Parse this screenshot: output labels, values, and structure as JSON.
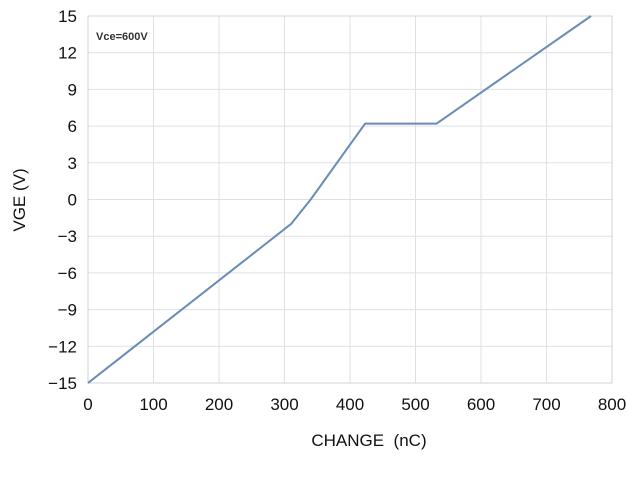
{
  "chart_data": {
    "type": "line",
    "title": "",
    "xlabel": "CHANGE  (nC)",
    "ylabel": "VGE (V)",
    "xlim": [
      0,
      800
    ],
    "ylim": [
      -15,
      15
    ],
    "x_ticks": [
      0,
      100,
      200,
      300,
      400,
      500,
      600,
      700,
      800
    ],
    "y_ticks": [
      15,
      12,
      9,
      6,
      3,
      0,
      -3,
      -6,
      -9,
      -12,
      -15
    ],
    "x_tick_labels": [
      "0",
      "100",
      "200",
      "300",
      "400",
      "500",
      "600",
      "700",
      "800"
    ],
    "y_tick_labels": [
      "15",
      "12",
      "9",
      "6",
      "3",
      "0",
      "−3",
      "−6",
      "−9",
      "−12",
      "−15"
    ],
    "grid": true,
    "annotation": "Vce=600V",
    "series": [
      {
        "x": [
          0,
          310,
          340,
          423,
          532,
          768
        ],
        "y": [
          -15,
          -2,
          0,
          6.2,
          6.2,
          15
        ],
        "color": "#6a8bb5"
      }
    ]
  }
}
